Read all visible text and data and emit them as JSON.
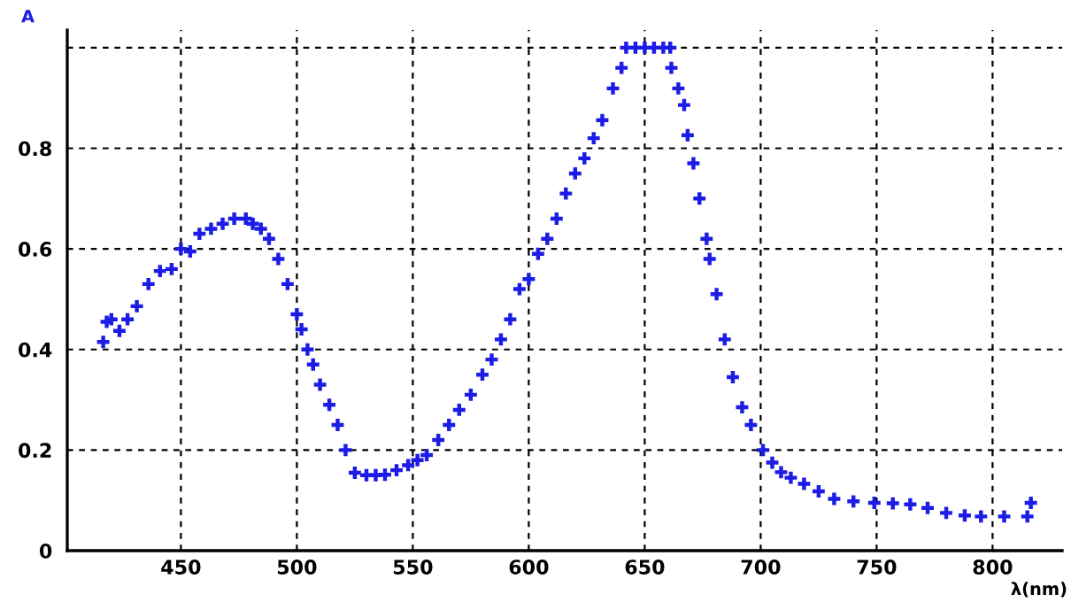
{
  "chart_data": {
    "type": "scatter",
    "xlabel": "λ(nm)",
    "ylabel": "A",
    "xlim": [
      401,
      830
    ],
    "ylim": [
      0,
      1.035
    ],
    "xticks": [
      450,
      500,
      550,
      600,
      650,
      700,
      750,
      800
    ],
    "yticks": [
      0,
      0.2,
      0.4,
      0.6,
      0.8,
      {
        "value": 1.0,
        "label": null
      }
    ],
    "grid": true,
    "marker": "cross",
    "series": [
      {
        "color": "#1c1ce6",
        "x": [
          416.5,
          418,
          420,
          423.5,
          427,
          431,
          436,
          441,
          446,
          450,
          454,
          458,
          463,
          468,
          473,
          478,
          481,
          484.5,
          488,
          492,
          496,
          500,
          502,
          504.6,
          507,
          510,
          514,
          517.6,
          521,
          525,
          530,
          534,
          538,
          543,
          548,
          552,
          556,
          561,
          565.6,
          570,
          575,
          580,
          584,
          588,
          592,
          596,
          600,
          604,
          608,
          612,
          616,
          620,
          624,
          628,
          631.7,
          636.3,
          640,
          642,
          646,
          650,
          654,
          658,
          661,
          661.5,
          664.5,
          667,
          668.5,
          671,
          673.6,
          676.7,
          678,
          681,
          684.5,
          688,
          692,
          695.8,
          701,
          705,
          708.8,
          713,
          718.7,
          725,
          731.7,
          740,
          749,
          757,
          764.5,
          772,
          780,
          788,
          795,
          805,
          815,
          816.5
        ],
        "values": [
          0.415,
          0.455,
          0.46,
          0.437,
          0.46,
          0.486,
          0.53,
          0.556,
          0.56,
          0.6,
          0.595,
          0.63,
          0.64,
          0.65,
          0.66,
          0.66,
          0.65,
          0.64,
          0.62,
          0.58,
          0.53,
          0.47,
          0.44,
          0.4,
          0.37,
          0.33,
          0.29,
          0.25,
          0.2,
          0.155,
          0.15,
          0.15,
          0.151,
          0.16,
          0.17,
          0.18,
          0.19,
          0.22,
          0.25,
          0.28,
          0.31,
          0.35,
          0.38,
          0.42,
          0.46,
          0.52,
          0.54,
          0.59,
          0.62,
          0.66,
          0.71,
          0.75,
          0.78,
          0.82,
          0.856,
          0.919,
          0.96,
          1.0,
          1.0,
          1.0,
          1.0,
          1.0,
          1.0,
          0.96,
          0.919,
          0.886,
          0.826,
          0.77,
          0.7,
          0.62,
          0.58,
          0.51,
          0.42,
          0.345,
          0.285,
          0.25,
          0.2,
          0.175,
          0.156,
          0.145,
          0.133,
          0.118,
          0.103,
          0.098,
          0.095,
          0.094,
          0.092,
          0.085,
          0.075,
          0.07,
          0.068,
          0.068,
          0.068,
          0.095
        ]
      }
    ]
  }
}
